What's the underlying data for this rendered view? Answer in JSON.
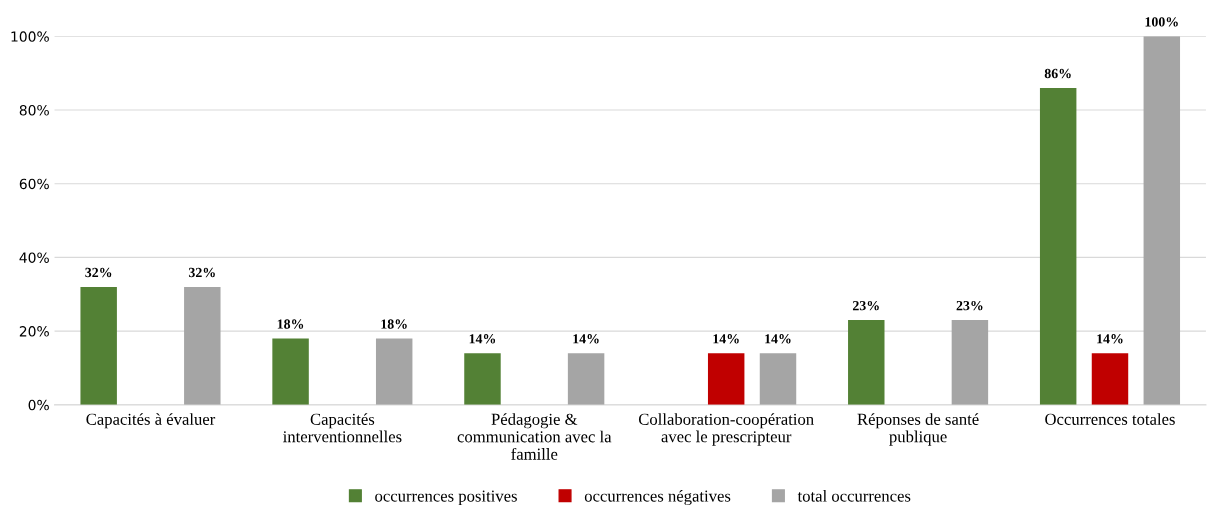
{
  "chart_data": {
    "type": "bar",
    "categories": [
      "Capacités à évaluer",
      "Capacités\ninterventionnelles",
      "Pédagogie &\ncommunication avec la\nfamille",
      "Collaboration-coopération\navec le prescripteur",
      "Réponses de santé\npublique",
      "Occurrences totales"
    ],
    "series": [
      {
        "name": "occurrences positives",
        "color": "#538135",
        "values": [
          32,
          18,
          14,
          null,
          23,
          86
        ],
        "value_labels": [
          "32%",
          "18%",
          "14%",
          null,
          "23%",
          "86%"
        ]
      },
      {
        "name": "occurrences négatives",
        "color": "#c00000",
        "values": [
          null,
          null,
          null,
          14,
          null,
          14
        ],
        "value_labels": [
          null,
          null,
          null,
          "14%",
          null,
          "14%"
        ]
      },
      {
        "name": "total occurrences",
        "color": "#a5a5a5",
        "values": [
          32,
          18,
          14,
          14,
          23,
          100
        ],
        "value_labels": [
          "32%",
          "18%",
          "14%",
          "14%",
          "23%",
          "100%"
        ]
      }
    ],
    "ylim": [
      0,
      100
    ],
    "yticks": [
      {
        "value": 0,
        "label": "0%"
      },
      {
        "value": 20,
        "label": "20%"
      },
      {
        "value": 40,
        "label": "40%"
      },
      {
        "value": 60,
        "label": "60%"
      },
      {
        "value": 80,
        "label": "80%"
      },
      {
        "value": 100,
        "label": "100%"
      }
    ],
    "grid": "y",
    "legend": "bottom"
  }
}
